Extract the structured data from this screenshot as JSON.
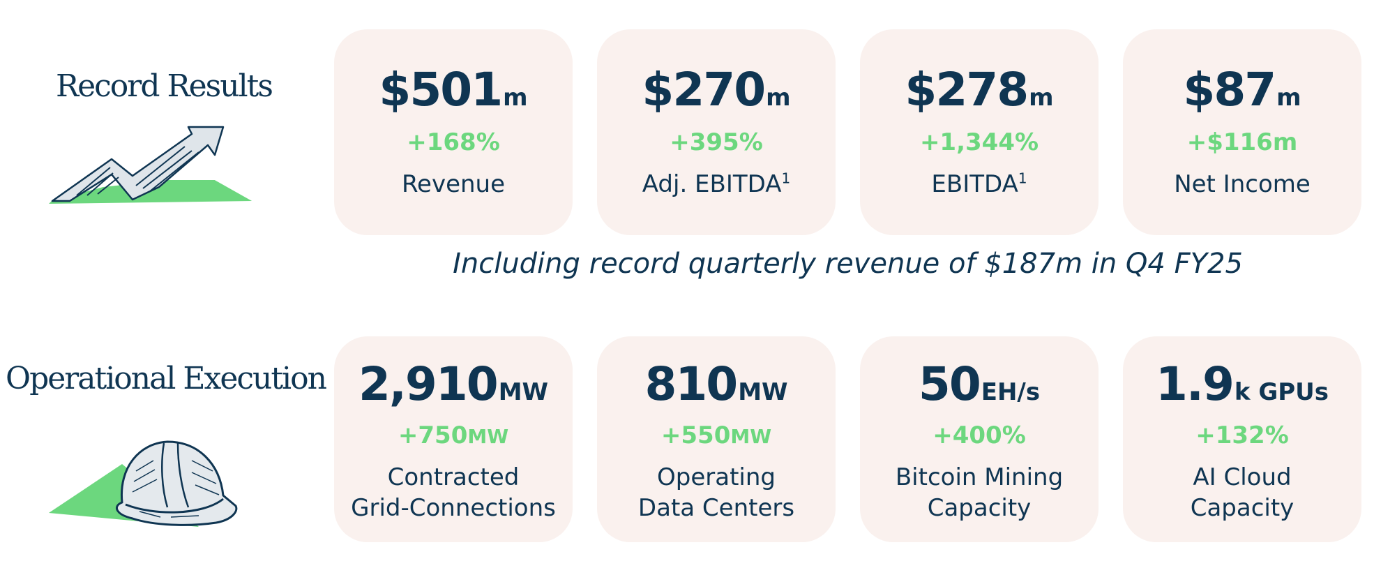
{
  "sections": {
    "results": {
      "title": "Record Results",
      "cards": [
        {
          "value": "$501",
          "unit": "m",
          "change": "+168%",
          "change_unit": "",
          "label": "Revenue",
          "footnote": ""
        },
        {
          "value": "$270",
          "unit": "m",
          "change": "+395%",
          "change_unit": "",
          "label": "Adj. EBITDA",
          "footnote": "1"
        },
        {
          "value": "$278",
          "unit": "m",
          "change": "+1,344%",
          "change_unit": "",
          "label": "EBITDA",
          "footnote": "1"
        },
        {
          "value": "$87",
          "unit": "m",
          "change": "+$116m",
          "change_unit": "",
          "label": "Net Income",
          "footnote": ""
        }
      ]
    },
    "note": "Including record quarterly revenue of $187m in Q4 FY25",
    "operations": {
      "title": "Operational Execution",
      "cards": [
        {
          "value": "2,910",
          "unit": "MW",
          "change": "+750",
          "change_unit": "MW",
          "label_line1": "Contracted",
          "label_line2": "Grid-Connections"
        },
        {
          "value": "810",
          "unit": "MW",
          "change": "+550",
          "change_unit": "MW",
          "label_line1": "Operating",
          "label_line2": "Data Centers"
        },
        {
          "value": "50",
          "unit": "EH/s",
          "change": "+400%",
          "change_unit": "",
          "label_line1": "Bitcoin Mining",
          "label_line2": "Capacity"
        },
        {
          "value": "1.9",
          "unit": "k GPUs",
          "change": "+132%",
          "change_unit": "",
          "label_line1": "AI Cloud",
          "label_line2": "Capacity"
        }
      ]
    }
  },
  "colors": {
    "navy": "#0f3552",
    "green": "#6cd77e",
    "card_bg": "#faf1ee"
  },
  "icons": {
    "results_illustration": "rising-arrow-icon",
    "operations_illustration": "hard-hat-icon"
  }
}
